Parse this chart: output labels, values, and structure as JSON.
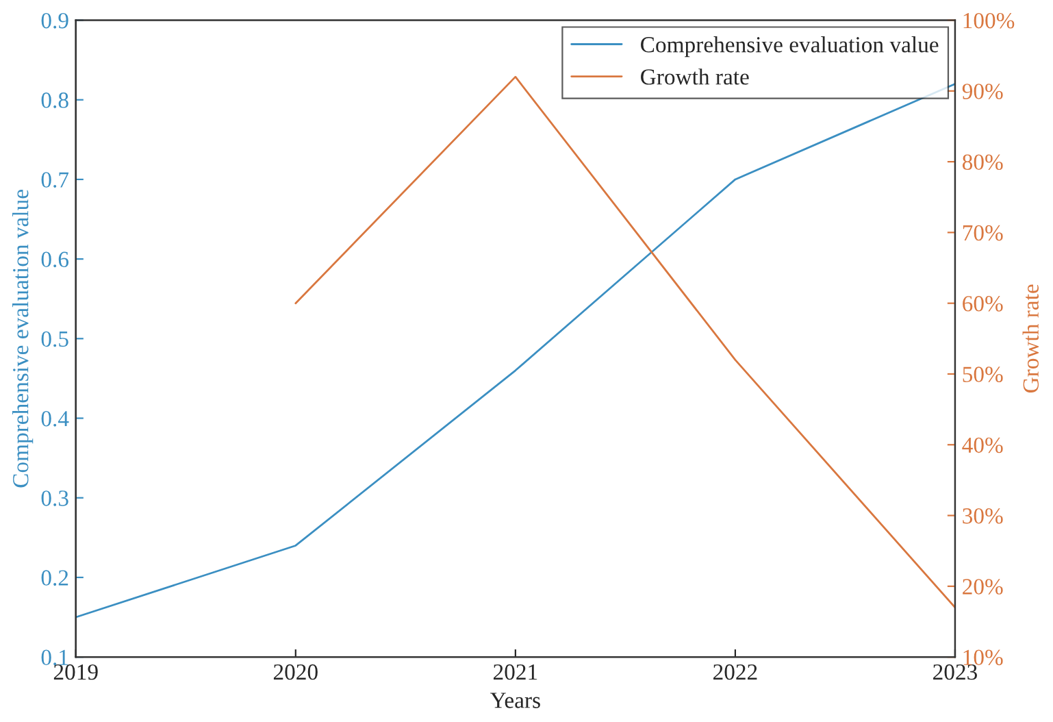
{
  "chart_data": {
    "type": "line",
    "xlabel": "Years",
    "ylabel": "Comprehensive evaluation value",
    "y2label": "Growth rate",
    "x": [
      2019,
      2020,
      2021,
      2022,
      2023
    ],
    "series": [
      {
        "name": "Comprehensive evaluation value",
        "color": "#3b8fc2",
        "values": [
          0.15,
          0.24,
          0.46,
          0.7,
          0.82
        ]
      },
      {
        "name": "Growth rate",
        "color": "#d9773f",
        "axis": "y2",
        "values": [
          null,
          60,
          92,
          52,
          17
        ]
      }
    ],
    "xlim": [
      2019,
      2023
    ],
    "xticks": [
      2019,
      2020,
      2021,
      2022,
      2023
    ],
    "ylim": [
      0.1,
      0.9
    ],
    "yticks": [
      0.1,
      0.2,
      0.3,
      0.4,
      0.5,
      0.6,
      0.7,
      0.8,
      0.9
    ],
    "y2lim": [
      10,
      100
    ],
    "y2ticks": [
      {
        "value": 10,
        "label": "10%"
      },
      {
        "value": 20,
        "label": "20%"
      },
      {
        "value": 30,
        "label": "30%"
      },
      {
        "value": 40,
        "label": "40%"
      },
      {
        "value": 50,
        "label": "50%"
      },
      {
        "value": 60,
        "label": "60%"
      },
      {
        "value": 70,
        "label": "70%"
      },
      {
        "value": 80,
        "label": "80%"
      },
      {
        "value": 90,
        "label": "90%"
      },
      {
        "value": 100,
        "label": "100%"
      }
    ],
    "legend": "top right",
    "grid": false,
    "marker": "none",
    "line_style": "solid"
  }
}
